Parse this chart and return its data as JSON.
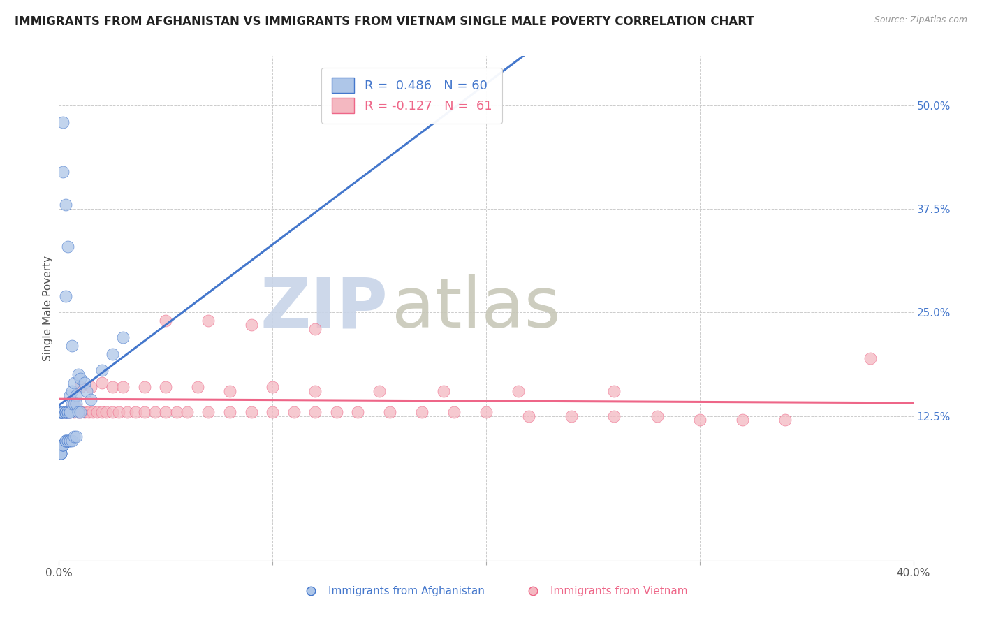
{
  "title": "IMMIGRANTS FROM AFGHANISTAN VS IMMIGRANTS FROM VIETNAM SINGLE MALE POVERTY CORRELATION CHART",
  "source": "Source: ZipAtlas.com",
  "xlabel_afg": "Immigrants from Afghanistan",
  "xlabel_viet": "Immigrants from Vietnam",
  "ylabel": "Single Male Poverty",
  "xlim": [
    0.0,
    0.4
  ],
  "ylim": [
    -0.05,
    0.56
  ],
  "yticks": [
    0.0,
    0.125,
    0.25,
    0.375,
    0.5
  ],
  "ytick_labels": [
    "",
    "12.5%",
    "25.0%",
    "37.5%",
    "50.0%"
  ],
  "xticks": [
    0.0,
    0.1,
    0.2,
    0.3,
    0.4
  ],
  "xtick_labels": [
    "0.0%",
    "",
    "",
    "",
    "40.0%"
  ],
  "R_afg": 0.486,
  "N_afg": 60,
  "R_viet": -0.127,
  "N_viet": 61,
  "color_afg": "#aec6e8",
  "color_viet": "#f4b8c1",
  "line_color_afg": "#4477cc",
  "line_color_viet": "#ee6688",
  "legend_box_color_afg": "#aec6e8",
  "legend_box_color_viet": "#f4b8c1",
  "background_color": "#ffffff",
  "grid_color": "#cccccc",
  "title_fontsize": 12,
  "axis_label_fontsize": 11,
  "tick_fontsize": 11,
  "afg_x": [
    0.001,
    0.001,
    0.001,
    0.001,
    0.001,
    0.001,
    0.001,
    0.001,
    0.001,
    0.001,
    0.002,
    0.002,
    0.002,
    0.002,
    0.002,
    0.002,
    0.002,
    0.002,
    0.002,
    0.002,
    0.003,
    0.003,
    0.003,
    0.003,
    0.003,
    0.003,
    0.003,
    0.003,
    0.003,
    0.004,
    0.004,
    0.004,
    0.004,
    0.004,
    0.004,
    0.005,
    0.005,
    0.005,
    0.005,
    0.005,
    0.006,
    0.006,
    0.006,
    0.006,
    0.007,
    0.007,
    0.007,
    0.008,
    0.008,
    0.008,
    0.009,
    0.009,
    0.01,
    0.01,
    0.012,
    0.013,
    0.015,
    0.02,
    0.025,
    0.03
  ],
  "afg_y": [
    0.13,
    0.13,
    0.13,
    0.13,
    0.13,
    0.13,
    0.08,
    0.08,
    0.08,
    0.08,
    0.48,
    0.42,
    0.13,
    0.13,
    0.13,
    0.13,
    0.09,
    0.09,
    0.09,
    0.09,
    0.38,
    0.27,
    0.13,
    0.13,
    0.13,
    0.13,
    0.095,
    0.095,
    0.095,
    0.33,
    0.13,
    0.13,
    0.13,
    0.095,
    0.095,
    0.15,
    0.13,
    0.13,
    0.095,
    0.095,
    0.21,
    0.155,
    0.14,
    0.095,
    0.165,
    0.14,
    0.1,
    0.15,
    0.14,
    0.1,
    0.175,
    0.13,
    0.17,
    0.13,
    0.165,
    0.155,
    0.145,
    0.18,
    0.2,
    0.22
  ],
  "viet_x": [
    0.003,
    0.005,
    0.006,
    0.007,
    0.008,
    0.009,
    0.01,
    0.012,
    0.014,
    0.016,
    0.018,
    0.02,
    0.022,
    0.025,
    0.028,
    0.032,
    0.036,
    0.04,
    0.045,
    0.05,
    0.055,
    0.06,
    0.07,
    0.08,
    0.09,
    0.1,
    0.11,
    0.12,
    0.13,
    0.14,
    0.155,
    0.17,
    0.185,
    0.2,
    0.22,
    0.24,
    0.26,
    0.28,
    0.3,
    0.32,
    0.34,
    0.01,
    0.015,
    0.02,
    0.025,
    0.03,
    0.04,
    0.05,
    0.065,
    0.08,
    0.1,
    0.12,
    0.15,
    0.18,
    0.215,
    0.26,
    0.05,
    0.07,
    0.09,
    0.12,
    0.38
  ],
  "viet_y": [
    0.13,
    0.13,
    0.135,
    0.13,
    0.135,
    0.13,
    0.13,
    0.13,
    0.13,
    0.13,
    0.13,
    0.13,
    0.13,
    0.13,
    0.13,
    0.13,
    0.13,
    0.13,
    0.13,
    0.13,
    0.13,
    0.13,
    0.13,
    0.13,
    0.13,
    0.13,
    0.13,
    0.13,
    0.13,
    0.13,
    0.13,
    0.13,
    0.13,
    0.13,
    0.125,
    0.125,
    0.125,
    0.125,
    0.12,
    0.12,
    0.12,
    0.16,
    0.16,
    0.165,
    0.16,
    0.16,
    0.16,
    0.16,
    0.16,
    0.155,
    0.16,
    0.155,
    0.155,
    0.155,
    0.155,
    0.155,
    0.24,
    0.24,
    0.235,
    0.23,
    0.195
  ],
  "watermark_zip_color": "#c8d4e8",
  "watermark_atlas_color": "#c8c8b8"
}
